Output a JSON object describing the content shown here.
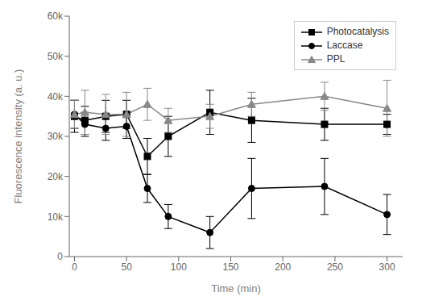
{
  "chart_data": {
    "type": "line",
    "xlabel": "Time (min)",
    "ylabel": "Fluorescence intensity (a. u.)",
    "xlim": [
      -5,
      315
    ],
    "ylim": [
      0,
      60000
    ],
    "xticks": [
      0,
      50,
      100,
      150,
      200,
      250,
      300
    ],
    "yticks": [
      0,
      {
        "value": 10000,
        "label": "10k"
      },
      {
        "value": 20000,
        "label": "20k"
      },
      {
        "value": 30000,
        "label": "30k"
      },
      {
        "value": 40000,
        "label": "40k"
      },
      {
        "value": 50000,
        "label": "50k"
      },
      {
        "value": 60000,
        "label": "60k"
      }
    ],
    "legend": "upper right",
    "grid": false,
    "x": [
      0,
      10,
      30,
      50,
      70,
      90,
      130,
      170,
      240,
      300
    ],
    "series": [
      {
        "name": "Photocatalysis",
        "color": "#000000",
        "marker": "square",
        "line_style": "solid",
        "values": [
          35000,
          34000,
          35000,
          35500,
          25000,
          30000,
          36000,
          34000,
          33000,
          33000
        ],
        "yerr": [
          4000,
          3500,
          4000,
          3500,
          4500,
          5000,
          5500,
          5500,
          4000,
          2500
        ]
      },
      {
        "name": "Laccase",
        "color": "#000000",
        "marker": "circle",
        "line_style": "solid",
        "values": [
          35500,
          33000,
          32000,
          32500,
          17000,
          10000,
          6000,
          17000,
          17500,
          10500
        ],
        "yerr": [
          3500,
          3000,
          3000,
          3000,
          3500,
          3000,
          4000,
          7500,
          7000,
          5000
        ]
      },
      {
        "name": "PPL",
        "color": "#888888",
        "marker": "triangle",
        "line_style": "solid",
        "values": [
          35500,
          36000,
          35500,
          35500,
          38000,
          34000,
          35000,
          38000,
          40000,
          37000
        ],
        "yerr": [
          3500,
          5500,
          5000,
          5500,
          4000,
          3000,
          3000,
          3000,
          3500,
          7000
        ]
      }
    ]
  }
}
